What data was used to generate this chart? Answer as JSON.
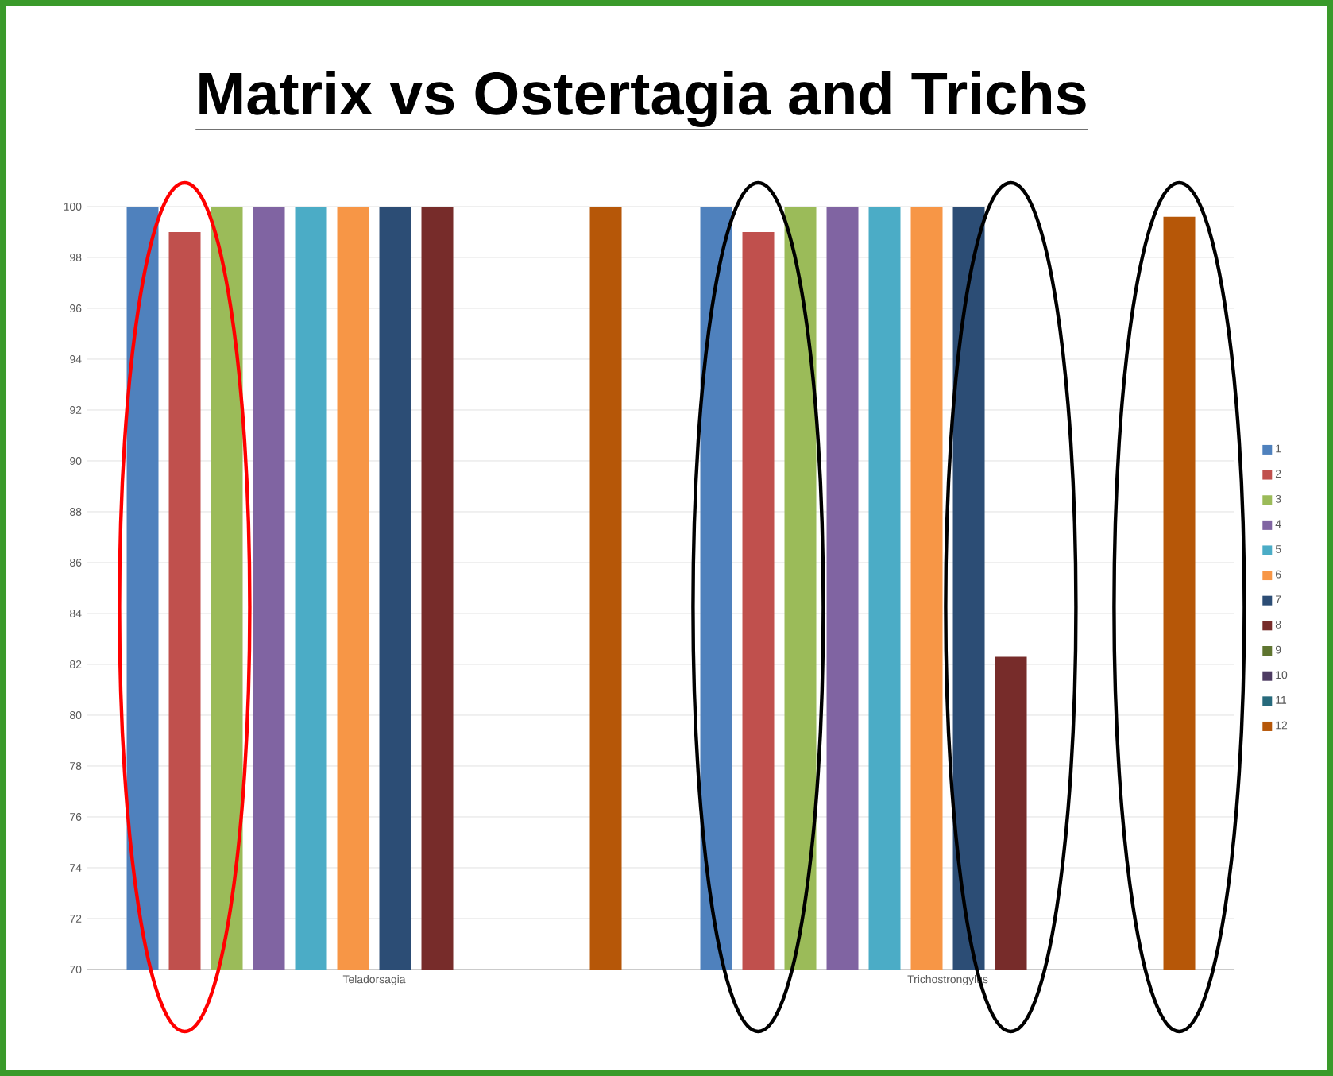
{
  "chart_data": {
    "type": "bar",
    "title": "Matrix vs Ostertagia and Trichs",
    "categories": [
      "Teladorsagia",
      "Trichostrongylus"
    ],
    "series": [
      {
        "name": "1",
        "color": "#4f81bd",
        "values": [
          100,
          100
        ]
      },
      {
        "name": "2",
        "color": "#c0504d",
        "values": [
          99,
          99
        ]
      },
      {
        "name": "3",
        "color": "#9bbb59",
        "values": [
          100,
          100
        ]
      },
      {
        "name": "4",
        "color": "#8064a2",
        "values": [
          100,
          100
        ]
      },
      {
        "name": "5",
        "color": "#4bacc6",
        "values": [
          100,
          100
        ]
      },
      {
        "name": "6",
        "color": "#f79646",
        "values": [
          100,
          100
        ]
      },
      {
        "name": "7",
        "color": "#2c4d75",
        "values": [
          100,
          100
        ]
      },
      {
        "name": "8",
        "color": "#772c2a",
        "values": [
          100,
          82.3
        ]
      },
      {
        "name": "9",
        "color": "#5f7530",
        "values": [
          null,
          null
        ]
      },
      {
        "name": "10",
        "color": "#4d3b62",
        "values": [
          null,
          null
        ]
      },
      {
        "name": "11",
        "color": "#276a7c",
        "values": [
          null,
          null
        ]
      },
      {
        "name": "12",
        "color": "#b65708",
        "values": [
          100,
          99.6
        ]
      }
    ],
    "ylim": [
      70,
      100
    ],
    "yticks": [
      70,
      72,
      74,
      76,
      78,
      80,
      82,
      84,
      86,
      88,
      90,
      92,
      94,
      96,
      98,
      100
    ],
    "grid": "y",
    "legend": "right"
  }
}
